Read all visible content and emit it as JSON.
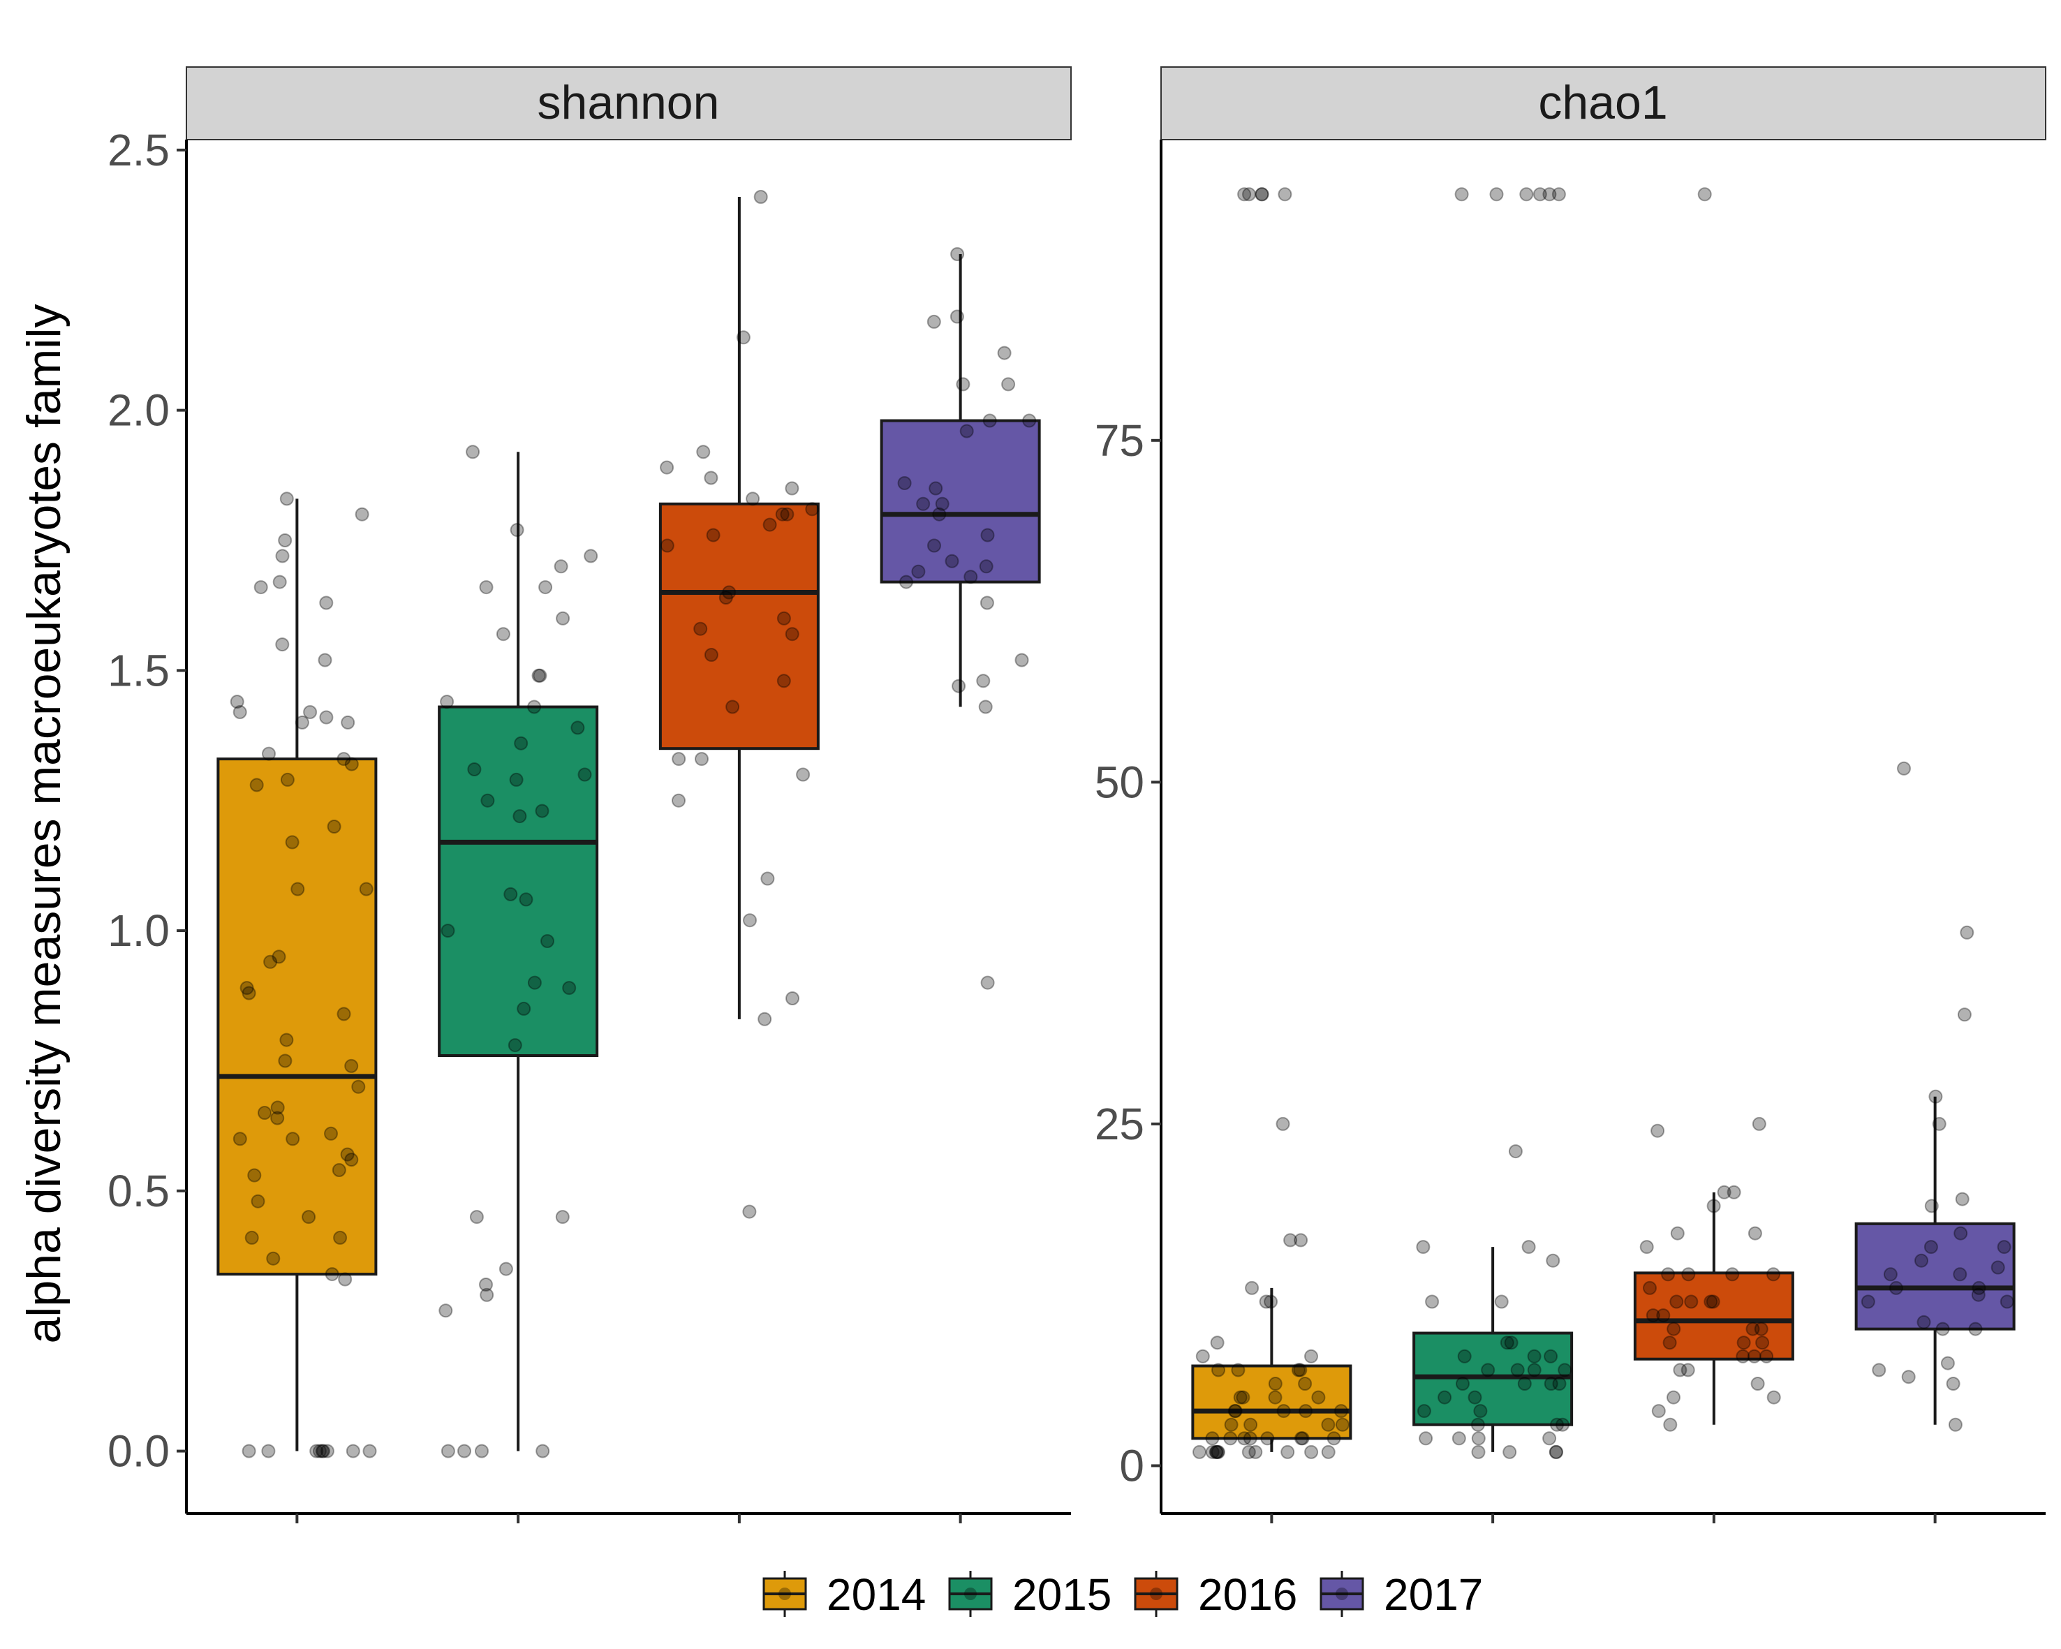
{
  "chart_data": {
    "type": "box",
    "ylabel": "alpha diversity measures macroeukaryotes family",
    "legend": {
      "placement": "bottom",
      "entries": [
        "2014",
        "2015",
        "2016",
        "2017"
      ]
    },
    "colors": {
      "2014": "#DE9A0A",
      "2015": "#1B8F64",
      "2016": "#CC4B0B",
      "2017": "#6557A6"
    },
    "panels": [
      {
        "title": "shannon",
        "ylim": [
          -0.12,
          2.52
        ],
        "yticks": [
          0.0,
          0.5,
          1.0,
          1.5,
          2.0,
          2.5
        ],
        "ytick_labels": [
          "0.0",
          "0.5",
          "1.0",
          "1.5",
          "2.0",
          "2.5"
        ],
        "groups": [
          {
            "name": "2014",
            "min": 0.0,
            "q1": 0.34,
            "median": 0.72,
            "q3": 1.33,
            "max": 1.83,
            "points": [
              0,
              0,
              0,
              0,
              0,
              0,
              0,
              0,
              0,
              0.33,
              0.34,
              0.37,
              0.41,
              0.41,
              0.45,
              0.48,
              0.53,
              0.54,
              0.56,
              0.57,
              0.6,
              0.6,
              0.61,
              0.64,
              0.65,
              0.66,
              0.7,
              0.74,
              0.75,
              0.79,
              0.84,
              0.88,
              0.89,
              0.94,
              0.95,
              1.08,
              1.08,
              1.17,
              1.2,
              1.28,
              1.29,
              1.32,
              1.33,
              1.34,
              1.4,
              1.4,
              1.41,
              1.42,
              1.42,
              1.44,
              1.52,
              1.55,
              1.63,
              1.66,
              1.67,
              1.72,
              1.75,
              1.8,
              1.83
            ]
          },
          {
            "name": "2015",
            "min": 0.0,
            "q1": 0.76,
            "median": 1.17,
            "q3": 1.43,
            "max": 1.92,
            "points": [
              0,
              0,
              0,
              0,
              0.27,
              0.3,
              0.32,
              0.35,
              0.45,
              0.45,
              0.78,
              0.85,
              0.89,
              0.9,
              0.98,
              1.0,
              1.06,
              1.07,
              1.22,
              1.23,
              1.25,
              1.29,
              1.3,
              1.31,
              1.36,
              1.39,
              1.43,
              1.44,
              1.49,
              1.49,
              1.57,
              1.6,
              1.66,
              1.66,
              1.7,
              1.72,
              1.77,
              1.92
            ]
          },
          {
            "name": "2016",
            "min": 0.83,
            "q1": 1.35,
            "median": 1.65,
            "q3": 1.82,
            "max": 2.41,
            "points": [
              0.46,
              0.83,
              0.87,
              1.02,
              1.1,
              1.25,
              1.3,
              1.33,
              1.33,
              1.43,
              1.48,
              1.53,
              1.57,
              1.58,
              1.6,
              1.64,
              1.65,
              1.74,
              1.76,
              1.78,
              1.8,
              1.8,
              1.81,
              1.83,
              1.85,
              1.87,
              1.89,
              1.92,
              2.14,
              2.41
            ]
          },
          {
            "name": "2017",
            "min": 1.43,
            "q1": 1.67,
            "median": 1.8,
            "q3": 1.98,
            "max": 2.3,
            "points": [
              0.9,
              1.43,
              1.47,
              1.48,
              1.52,
              1.63,
              1.67,
              1.68,
              1.69,
              1.7,
              1.71,
              1.74,
              1.76,
              1.8,
              1.82,
              1.82,
              1.85,
              1.86,
              1.96,
              1.98,
              1.98,
              2.05,
              2.05,
              2.11,
              2.17,
              2.18,
              2.3
            ]
          }
        ]
      },
      {
        "title": "chao1",
        "ylim": [
          -3.5,
          97
        ],
        "yticks": [
          0,
          25,
          50,
          75
        ],
        "ytick_labels": [
          "0",
          "25",
          "50",
          "75"
        ],
        "groups": [
          {
            "name": "2014",
            "min": 1,
            "q1": 2,
            "median": 4,
            "q3": 7.3,
            "max": 13,
            "points": [
              1,
              1,
              1,
              1,
              1,
              1,
              1,
              1,
              1,
              1,
              1,
              2,
              2,
              2,
              2,
              2,
              2,
              2,
              2,
              3,
              3,
              3,
              3,
              4,
              4,
              4,
              4,
              4,
              5,
              5,
              5,
              5,
              6,
              6,
              7,
              7,
              7,
              7,
              8,
              8,
              9,
              12,
              12,
              13,
              16.5,
              16.5,
              25,
              93,
              93,
              93,
              93,
              93
            ]
          },
          {
            "name": "2015",
            "min": 1,
            "q1": 3,
            "median": 6.5,
            "q3": 9.7,
            "max": 16,
            "points": [
              1,
              1,
              1,
              1,
              2,
              2,
              2,
              2,
              3,
              3,
              3,
              4,
              4,
              5,
              5,
              6,
              6,
              6,
              6,
              7,
              7,
              7,
              7,
              8,
              8,
              8,
              9,
              9,
              12,
              12,
              15,
              16,
              16,
              23,
              93,
              93,
              93,
              93,
              93,
              93
            ]
          },
          {
            "name": "2016",
            "min": 3,
            "q1": 7.8,
            "median": 10.6,
            "q3": 14.1,
            "max": 20,
            "points": [
              3,
              4,
              5,
              5,
              6,
              7,
              7,
              8,
              8,
              8,
              9,
              9,
              9,
              10,
              10,
              10,
              11,
              11,
              12,
              12,
              12,
              12,
              13,
              14,
              14,
              14,
              14,
              16,
              17,
              17,
              19,
              20,
              20,
              24.5,
              25,
              93
            ]
          },
          {
            "name": "2017",
            "min": 3,
            "q1": 10,
            "median": 13,
            "q3": 17.7,
            "max": 27,
            "points": [
              3,
              6,
              6.5,
              7,
              7.5,
              10,
              10,
              10.5,
              12,
              12,
              12.5,
              13,
              13,
              14,
              14,
              14.5,
              15,
              16,
              16,
              17,
              19,
              19.5,
              25,
              27,
              33,
              39,
              51
            ]
          }
        ]
      }
    ]
  }
}
